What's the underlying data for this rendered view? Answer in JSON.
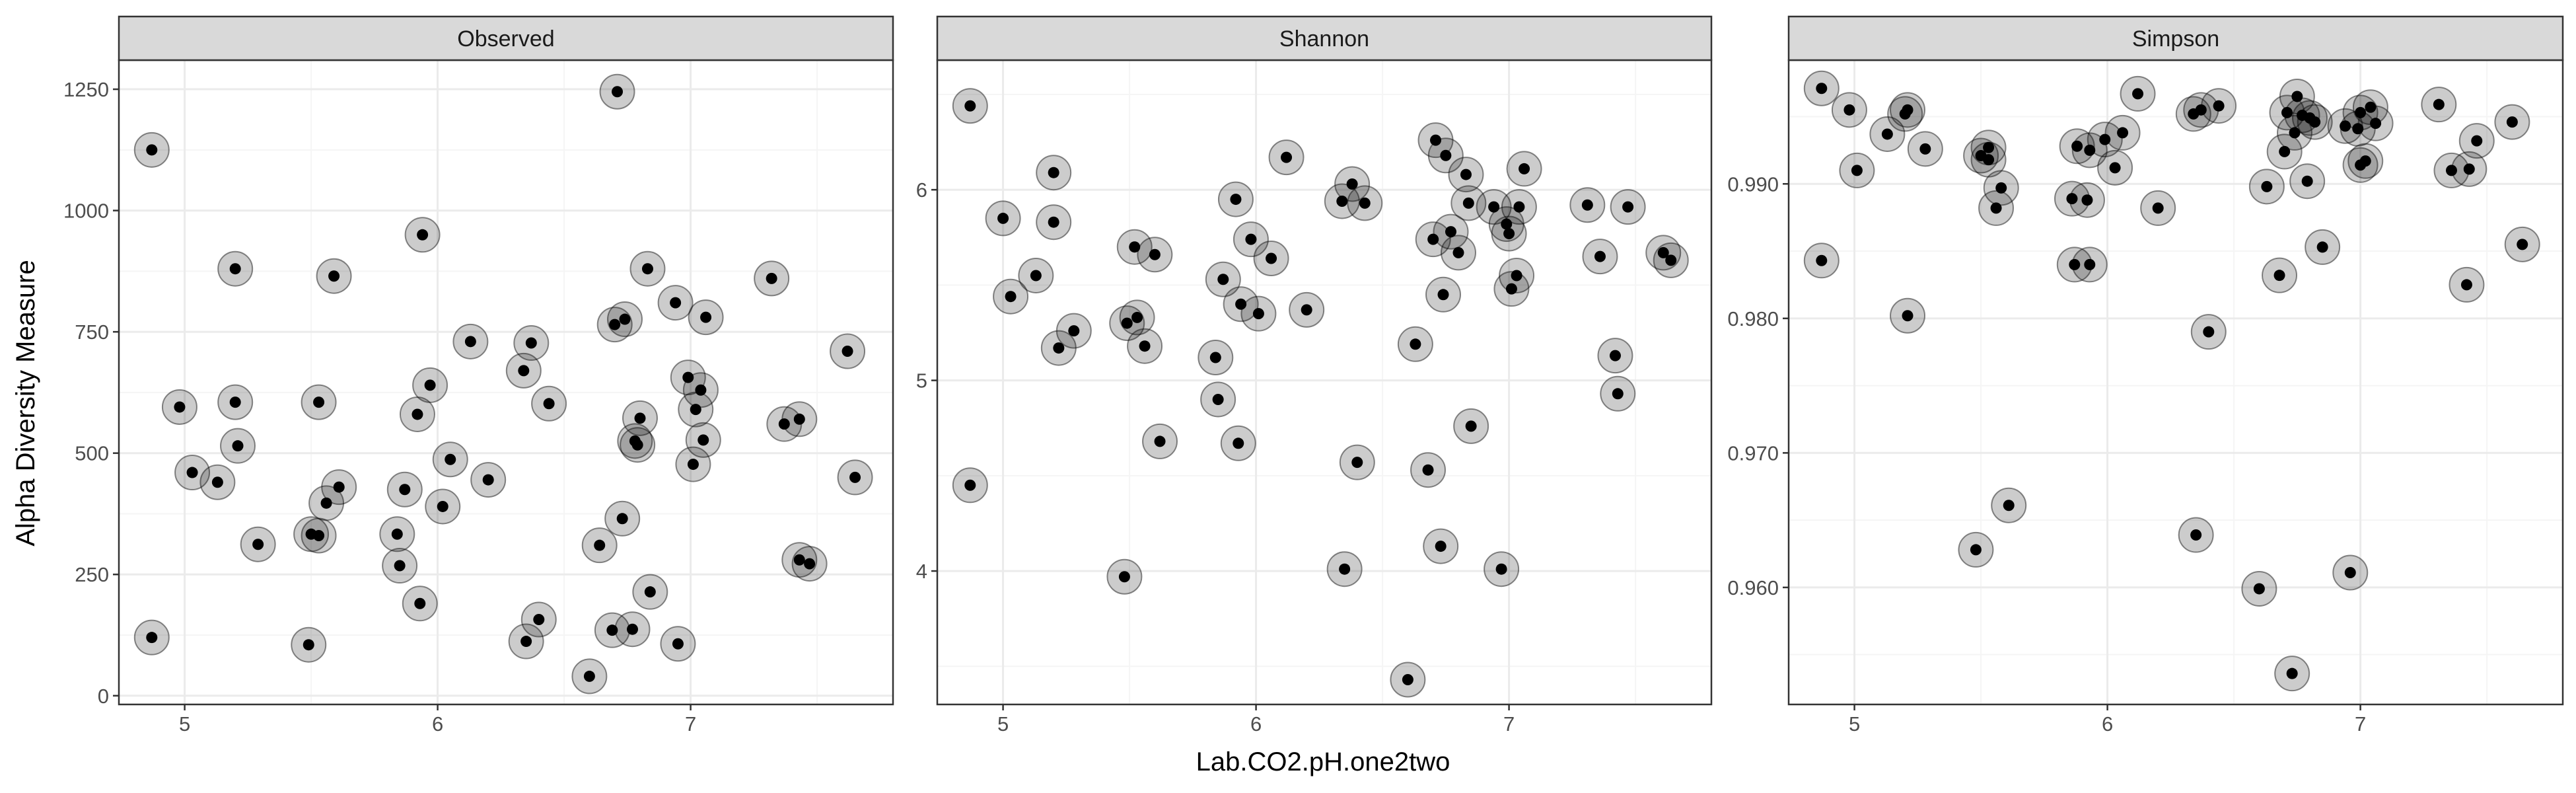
{
  "chart_data": {
    "type": "scatter",
    "layout": "facet_wrap",
    "xlabel": "Lab.CO2.pH.one2two",
    "ylabel": "Alpha Diversity Measure",
    "grid": true,
    "theme": {
      "strip_fill": "#d9d9d9",
      "panel_border": "#333333",
      "grid_major": "#ebebeb",
      "grid_minor": "#f5f5f5",
      "point_color": "#000000",
      "halo_fill": "rgba(0,0,0,0.2)",
      "halo_stroke": "rgba(0,0,0,0.45)"
    },
    "panels": [
      {
        "name": "Observed",
        "xlim": [
          4.74,
          7.8
        ],
        "ylim": [
          -18,
          1310
        ],
        "x_ticks": [
          5,
          6,
          7
        ],
        "x_tick_labels": [
          "5",
          "6",
          "7"
        ],
        "y_ticks": [
          0,
          250,
          500,
          750,
          1000,
          1250
        ],
        "y_tick_labels": [
          "0",
          "250",
          "500",
          "750",
          "1000",
          "1250"
        ],
        "x": [
          4.87,
          4.87,
          4.98,
          5.03,
          5.13,
          5.2,
          5.2,
          5.21,
          5.29,
          5.49,
          5.5,
          5.53,
          5.53,
          5.56,
          5.59,
          5.61,
          5.84,
          5.85,
          5.87,
          5.92,
          5.93,
          5.94,
          5.97,
          6.02,
          6.05,
          6.13,
          6.2,
          6.34,
          6.35,
          6.37,
          6.4,
          6.44,
          6.6,
          6.64,
          6.69,
          6.7,
          6.71,
          6.73,
          6.74,
          6.77,
          6.78,
          6.79,
          6.8,
          6.83,
          6.84,
          6.94,
          6.95,
          6.99,
          7.01,
          7.02,
          7.04,
          7.05,
          7.06,
          7.32,
          7.37,
          7.43,
          7.43,
          7.47,
          7.62,
          7.65
        ],
        "y": [
          1125,
          120,
          595,
          460,
          440,
          605,
          880,
          515,
          312,
          105,
          333,
          605,
          330,
          397,
          865,
          430,
          333,
          268,
          425,
          580,
          190,
          950,
          640,
          390,
          487,
          730,
          445,
          670,
          112,
          727,
          157,
          602,
          40,
          310,
          135,
          765,
          1245,
          365,
          776,
          137,
          525,
          517,
          572,
          880,
          214,
          810,
          107,
          656,
          477,
          590,
          630,
          527,
          780,
          860,
          560,
          570,
          280,
          272,
          710,
          450
        ]
      },
      {
        "name": "Shannon",
        "xlim": [
          4.74,
          7.8
        ],
        "ylim": [
          3.3,
          6.68
        ],
        "x_ticks": [
          5,
          6,
          7
        ],
        "x_tick_labels": [
          "5",
          "6",
          "7"
        ],
        "y_ticks": [
          4,
          5,
          6
        ],
        "y_tick_labels": [
          "4",
          "5",
          "6"
        ],
        "x": [
          4.87,
          4.87,
          5.0,
          5.03,
          5.13,
          5.2,
          5.2,
          5.22,
          5.28,
          5.48,
          5.49,
          5.52,
          5.53,
          5.56,
          5.6,
          5.62,
          5.84,
          5.85,
          5.87,
          5.92,
          5.93,
          5.94,
          5.98,
          6.01,
          6.06,
          6.12,
          6.2,
          6.34,
          6.35,
          6.38,
          6.4,
          6.43,
          6.6,
          6.63,
          6.68,
          6.7,
          6.71,
          6.73,
          6.74,
          6.75,
          6.77,
          6.8,
          6.83,
          6.84,
          6.85,
          6.94,
          6.97,
          6.99,
          7.0,
          7.01,
          7.03,
          7.04,
          7.06,
          7.31,
          7.36,
          7.42,
          7.43,
          7.47,
          7.61,
          7.64
        ],
        "y": [
          6.44,
          4.45,
          5.85,
          5.44,
          5.55,
          6.09,
          5.83,
          5.17,
          5.26,
          3.97,
          5.3,
          5.7,
          5.33,
          5.18,
          5.66,
          4.68,
          5.12,
          4.9,
          5.53,
          5.95,
          4.67,
          5.4,
          5.74,
          5.35,
          5.64,
          6.17,
          5.37,
          5.94,
          4.01,
          6.03,
          4.57,
          5.93,
          3.43,
          5.19,
          4.53,
          5.74,
          6.26,
          4.13,
          5.45,
          6.18,
          5.78,
          5.67,
          6.08,
          5.93,
          4.76,
          5.91,
          4.01,
          5.82,
          5.77,
          5.48,
          5.55,
          5.91,
          6.11,
          5.92,
          5.65,
          5.13,
          4.93,
          5.91,
          5.67,
          5.63
        ]
      },
      {
        "name": "Simpson",
        "xlim": [
          4.74,
          7.8
        ],
        "ylim": [
          0.9513,
          0.9992
        ],
        "x_ticks": [
          5,
          6,
          7
        ],
        "x_tick_labels": [
          "5",
          "6",
          "7"
        ],
        "y_ticks": [
          0.96,
          0.97,
          0.98,
          0.99
        ],
        "y_tick_labels": [
          "0.960",
          "0.970",
          "0.980",
          "0.990"
        ],
        "x": [
          4.87,
          4.87,
          4.98,
          5.01,
          5.13,
          5.2,
          5.21,
          5.21,
          5.28,
          5.48,
          5.5,
          5.53,
          5.53,
          5.56,
          5.58,
          5.61,
          5.86,
          5.87,
          5.88,
          5.92,
          5.93,
          5.93,
          5.99,
          6.03,
          6.06,
          6.12,
          6.2,
          6.34,
          6.35,
          6.37,
          6.4,
          6.44,
          6.6,
          6.63,
          6.68,
          6.7,
          6.71,
          6.73,
          6.74,
          6.75,
          6.77,
          6.79,
          6.8,
          6.82,
          6.85,
          6.94,
          6.96,
          6.99,
          7.0,
          7.0,
          7.02,
          7.04,
          7.06,
          7.31,
          7.36,
          7.42,
          7.43,
          7.46,
          7.6,
          7.64
        ],
        "y": [
          0.9971,
          0.9843,
          0.9955,
          0.991,
          0.9937,
          0.9952,
          0.9955,
          0.9802,
          0.9926,
          0.9628,
          0.9921,
          0.9927,
          0.9918,
          0.9882,
          0.9897,
          0.9661,
          0.9889,
          0.984,
          0.9928,
          0.9888,
          0.984,
          0.9925,
          0.9933,
          0.9912,
          0.9938,
          0.9967,
          0.9882,
          0.9952,
          0.9639,
          0.9955,
          0.979,
          0.9958,
          0.9599,
          0.9898,
          0.9832,
          0.9924,
          0.9953,
          0.9536,
          0.9938,
          0.9965,
          0.9951,
          0.9902,
          0.9949,
          0.9946,
          0.9853,
          0.9943,
          0.9611,
          0.9941,
          0.9953,
          0.9914,
          0.9917,
          0.9957,
          0.9945,
          0.9959,
          0.991,
          0.9825,
          0.9911,
          0.9932,
          0.9946,
          0.9855
        ]
      }
    ]
  }
}
